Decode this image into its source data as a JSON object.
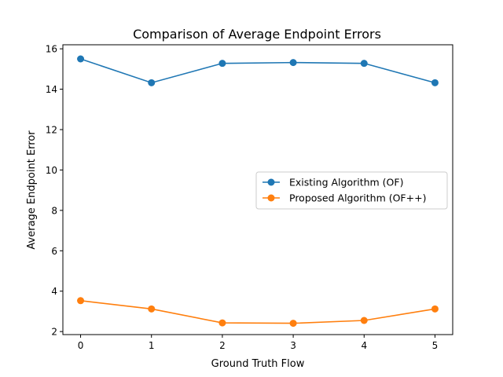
{
  "chart_data": {
    "type": "line",
    "title": "Comparison of Average Endpoint Errors",
    "xlabel": "Ground Truth Flow",
    "ylabel": "Average Endpoint Error",
    "x": [
      0,
      1,
      2,
      3,
      4,
      5
    ],
    "xlim": [
      -0.25,
      5.25
    ],
    "ylim": [
      1.85,
      16.2
    ],
    "xticks": [
      "0",
      "1",
      "2",
      "3",
      "4",
      "5"
    ],
    "yticks": [
      2,
      4,
      6,
      8,
      10,
      12,
      14,
      16
    ],
    "ytick_labels": [
      "2",
      "4",
      "6",
      "8",
      "10",
      "12",
      "14",
      "16"
    ],
    "grid": false,
    "legend_position": "center-right",
    "series": [
      {
        "name": "Existing Algorithm (OF)",
        "color": "#1f77b4",
        "marker": "circle",
        "values": [
          15.5,
          14.32,
          15.28,
          15.32,
          15.28,
          14.32
        ]
      },
      {
        "name": "Proposed Algorithm (OF++)",
        "color": "#ff7f0e",
        "marker": "circle",
        "values": [
          3.53,
          3.12,
          2.43,
          2.41,
          2.55,
          3.12
        ]
      }
    ]
  }
}
